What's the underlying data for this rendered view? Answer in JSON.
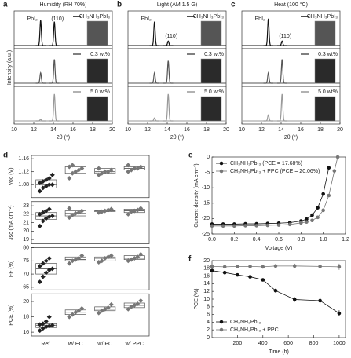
{
  "chart_data": [
    {
      "type": "xrd",
      "panel": "a",
      "title": "Humidity (RH 70%)",
      "xlabel": "2θ (°)",
      "ylabel": "Intensity (a.u.)",
      "xlim": [
        10,
        20
      ],
      "xticks": [
        10,
        12,
        14,
        16,
        18,
        20
      ],
      "ylim": [
        0,
        1
      ],
      "peak_labels": [
        "PbI₂",
        "(110)"
      ],
      "series": [
        {
          "name": "CH₃NH₃PbI₃",
          "color": "#111111",
          "x": [
            12.7,
            14.1
          ],
          "values": [
            0.85,
            0.8
          ]
        },
        {
          "name": "0.3 wt%",
          "color": "#555555",
          "x": [
            12.7,
            14.1
          ],
          "values": [
            0.35,
            0.8
          ]
        },
        {
          "name": "5.0 wt%",
          "color": "#999999",
          "x": [
            12.7,
            14.1
          ],
          "values": [
            0.05,
            0.9
          ]
        }
      ]
    },
    {
      "type": "xrd",
      "panel": "b",
      "title": "Light (AM 1.5 G)",
      "xlabel": "2θ (°)",
      "xlim": [
        10,
        20
      ],
      "xticks": [
        10,
        12,
        14,
        16,
        18,
        20
      ],
      "ylim": [
        0,
        1
      ],
      "peak_labels": [
        "PbI₂",
        "(110)"
      ],
      "series": [
        {
          "name": "CH₃NH₃PbI₃",
          "color": "#111111",
          "x": [
            12.7,
            14.1
          ],
          "values": [
            0.8,
            0.15
          ]
        },
        {
          "name": "0.3 wt%",
          "color": "#555555",
          "x": [
            12.7,
            14.1
          ],
          "values": [
            0.35,
            0.75
          ]
        },
        {
          "name": "5.0 wt%",
          "color": "#999999",
          "x": [
            12.7,
            14.1
          ],
          "values": [
            0.1,
            0.9
          ]
        }
      ]
    },
    {
      "type": "xrd",
      "panel": "c",
      "title": "Heat (100 °C)",
      "xlabel": "2θ (°)",
      "xlim": [
        10,
        20
      ],
      "xticks": [
        10,
        12,
        14,
        16,
        18,
        20
      ],
      "ylim": [
        0,
        1
      ],
      "peak_labels": [
        "PbI₂",
        "(110)"
      ],
      "series": [
        {
          "name": "CH₃NH₃PbI₃",
          "color": "#111111",
          "x": [
            12.7,
            14.1
          ],
          "values": [
            0.9,
            0.15
          ]
        },
        {
          "name": "0.3 wt%",
          "color": "#555555",
          "x": [
            12.7,
            14.1
          ],
          "values": [
            0.35,
            0.8
          ]
        },
        {
          "name": "5.0 wt%",
          "color": "#999999",
          "x": [
            12.7,
            14.1
          ],
          "values": [
            0.2,
            0.9
          ]
        }
      ]
    },
    {
      "type": "box",
      "panel": "d",
      "categories": [
        "Ref.",
        "w/ EC",
        "w/ PC",
        "w/ PPC"
      ],
      "colors": [
        "#222222",
        "#777777",
        "#777777",
        "#777777"
      ],
      "panels": [
        {
          "ylabel": "Voc (V)",
          "ylim": [
            1.04,
            1.17
          ],
          "yticks": [
            1.08,
            1.12,
            1.16
          ],
          "q1": [
            1.07,
            1.115,
            1.115,
            1.125
          ],
          "median": [
            1.08,
            1.125,
            1.12,
            1.13
          ],
          "q3": [
            1.095,
            1.135,
            1.13,
            1.135
          ],
          "points": [
            [
              1.06,
              1.07,
              1.075,
              1.08,
              1.08,
              1.085,
              1.09,
              1.095,
              1.1,
              1.11
            ],
            [
              1.1,
              1.115,
              1.12,
              1.125,
              1.13,
              1.135,
              1.14
            ],
            [
              1.11,
              1.115,
              1.12,
              1.12,
              1.125,
              1.13
            ],
            [
              1.12,
              1.125,
              1.13,
              1.13,
              1.135,
              1.14
            ]
          ]
        },
        {
          "ylabel": "Jsc (mA cm⁻²)",
          "ylim": [
            18.5,
            23.5
          ],
          "yticks": [
            19,
            20,
            21,
            22,
            23
          ],
          "q1": [
            21.4,
            21.8,
            22.3,
            22.2
          ],
          "median": [
            21.8,
            22.1,
            22.4,
            22.4
          ],
          "q3": [
            22.2,
            22.4,
            22.5,
            22.6
          ],
          "points": [
            [
              20.6,
              21.2,
              21.5,
              21.7,
              21.8,
              22.0,
              22.2,
              22.4,
              22.6
            ],
            [
              21.6,
              21.9,
              22.1,
              22.2,
              22.4,
              22.7
            ],
            [
              22.2,
              22.3,
              22.4,
              22.5,
              22.6
            ],
            [
              22.0,
              22.3,
              22.4,
              22.5,
              22.7
            ]
          ]
        },
        {
          "ylabel": "FF (%)",
          "ylim": [
            64,
            80
          ],
          "yticks": [
            65,
            70,
            75,
            80
          ],
          "q1": [
            70,
            75,
            75,
            75.5
          ],
          "median": [
            72,
            75.5,
            76,
            76
          ],
          "q3": [
            74,
            76.5,
            76.5,
            77
          ],
          "points": [
            [
              67,
              69,
              70.5,
              71.5,
              72,
              73,
              74,
              75,
              76
            ],
            [
              74,
              75,
              75.5,
              76,
              77
            ],
            [
              74.5,
              75,
              76,
              76.5,
              77
            ],
            [
              75,
              75.5,
              76,
              76.5,
              77.5
            ]
          ]
        },
        {
          "ylabel": "PCE (%)",
          "ylim": [
            15.5,
            21
          ],
          "yticks": [
            16,
            18,
            20
          ],
          "q1": [
            16.6,
            18.3,
            18.8,
            19.2
          ],
          "median": [
            16.9,
            18.6,
            19,
            19.5
          ],
          "q3": [
            17.1,
            18.9,
            19.3,
            19.8
          ],
          "points": [
            [
              16.2,
              16.5,
              16.7,
              16.8,
              16.9,
              17.0,
              17.1,
              17.4,
              18.0
            ],
            [
              18,
              18.3,
              18.6,
              18.8,
              19.1
            ],
            [
              18.5,
              18.8,
              19,
              19.2,
              19.6
            ],
            [
              19,
              19.3,
              19.5,
              19.7,
              20.1
            ]
          ]
        }
      ]
    },
    {
      "type": "line",
      "panel": "e",
      "xlabel": "Voltage (V)",
      "ylabel": "Current density (mA cm⁻²)",
      "legend": "upper left",
      "xlim": [
        0,
        1.2
      ],
      "xticks": [
        {
          "value": 0,
          "label": "0.0"
        },
        0.2,
        0.4,
        0.6,
        0.8,
        {
          "value": 1,
          "label": "1.0"
        },
        1.2
      ],
      "ylim": [
        -25,
        0
      ],
      "yticks": [
        -25,
        -20,
        -15,
        -10,
        -5,
        0
      ],
      "x": [
        0,
        0.1,
        0.2,
        0.3,
        0.4,
        0.5,
        0.6,
        0.7,
        0.8,
        0.85,
        0.9,
        0.95,
        1.0,
        1.05,
        1.1,
        1.13
      ],
      "series": [
        {
          "name": "CH₃NH₃PbI₃ (PCE = 17.68%)",
          "color": "#111111",
          "values": [
            -21.8,
            -21.8,
            -21.8,
            -21.7,
            -21.7,
            -21.6,
            -21.5,
            -21.3,
            -20.8,
            -20.2,
            -18.9,
            -16.5,
            -12,
            -3.5,
            null,
            null
          ]
        },
        {
          "name": "CH₃NH₃PbI₃ + PPC (PCE = 20.06%)",
          "color": "#777777",
          "values": [
            -22.4,
            -22.4,
            -22.4,
            -22.3,
            -22.3,
            -22.2,
            -22.1,
            -21.9,
            -21.4,
            -21.1,
            -20.6,
            -19.6,
            -17.3,
            -12.5,
            -4.5,
            0
          ]
        }
      ]
    },
    {
      "type": "line",
      "panel": "f",
      "xlabel": "Time (h)",
      "ylabel": "PCE (%)",
      "legend": "lower left",
      "xlim": [
        0,
        1050
      ],
      "xticks": [
        200,
        400,
        600,
        800,
        1000
      ],
      "ylim": [
        0,
        20
      ],
      "yticks": [
        0,
        2,
        4,
        6,
        8,
        10,
        12,
        14,
        16,
        18,
        20
      ],
      "x": [
        0,
        100,
        200,
        300,
        400,
        500,
        650,
        850,
        1000
      ],
      "series": [
        {
          "name": "CH₃NH₃PbI₃",
          "color": "#111111",
          "values": [
            17.4,
            16.9,
            16.3,
            15.8,
            15.0,
            12.2,
            9.9,
            9.6,
            6.3
          ],
          "errors": [
            0.3,
            0.3,
            0.3,
            0.3,
            0.4,
            0.5,
            0.6,
            1.0,
            0.8
          ]
        },
        {
          "name": "CH₃NH₃PbI₃ + PPC",
          "color": "#777777",
          "values": [
            18.5,
            18.4,
            18.5,
            18.5,
            18.4,
            18.6,
            18.6,
            18.5,
            18.4
          ],
          "errors": [
            0.4,
            0.4,
            0.4,
            0.4,
            0.5,
            0.5,
            0.6,
            0.7,
            0.8
          ]
        }
      ]
    }
  ]
}
